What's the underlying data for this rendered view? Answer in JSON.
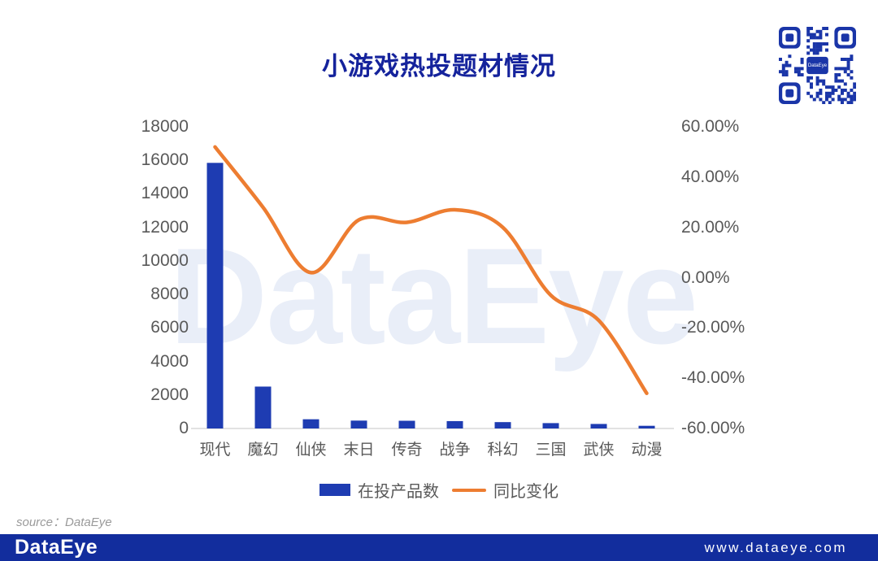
{
  "title": "小游戏热投题材情况",
  "watermark": "DataEye",
  "qr": {
    "center_label": "DataEye"
  },
  "source_note": "source：DataEye",
  "footer": {
    "logo": "DataEye",
    "website": "www.dataeye.com"
  },
  "colors": {
    "title": "#15239c",
    "bar": "#1e3cb2",
    "line": "#ed7d31",
    "axis_text": "#595959",
    "axis_line": "#d9d9d9",
    "footer_bg": "#122d9d",
    "watermark": "#e9eef8",
    "qr": "#1a35a8"
  },
  "chart_data": {
    "type": "bar+line combo",
    "categories": [
      "现代",
      "魔幻",
      "仙侠",
      "末日",
      "传奇",
      "战争",
      "科幻",
      "三国",
      "武侠",
      "动漫"
    ],
    "series": [
      {
        "name": "在投产品数",
        "type": "bar",
        "axis": "left",
        "values": [
          15850,
          2500,
          550,
          470,
          460,
          440,
          380,
          320,
          270,
          160
        ]
      },
      {
        "name": "同比变化",
        "type": "line",
        "axis": "right",
        "unit": "%",
        "values": [
          52,
          28,
          2,
          23,
          22,
          27,
          20,
          -7,
          -17,
          -46
        ]
      }
    ],
    "left_axis": {
      "min": 0,
      "max": 18000,
      "step": 2000,
      "tick_labels": [
        "18000",
        "16000",
        "14000",
        "12000",
        "10000",
        "8000",
        "6000",
        "4000",
        "2000",
        "0"
      ]
    },
    "right_axis": {
      "min": -60,
      "max": 60,
      "step": 20,
      "tick_labels": [
        "60.00%",
        "40.00%",
        "20.00%",
        "0.00%",
        "-20.00%",
        "-40.00%",
        "-60.00%"
      ]
    },
    "grid": false,
    "legend": [
      "在投产品数",
      "同比变化"
    ],
    "legend_position": "bottom"
  }
}
